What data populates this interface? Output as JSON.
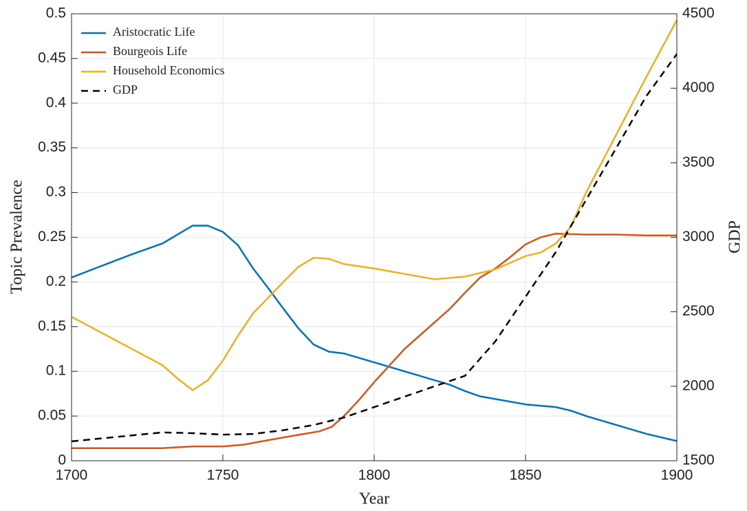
{
  "chart_data": {
    "type": "line",
    "xlabel": "Year",
    "ylabel": "Topic Prevalence",
    "y2label": "GDP",
    "xlim": [
      1700,
      1900
    ],
    "xticks": [
      1700,
      1750,
      1800,
      1850,
      1900
    ],
    "ylim": [
      0,
      0.5
    ],
    "yticks": [
      0,
      0.05,
      0.1,
      0.15,
      0.2,
      0.25,
      0.3,
      0.35,
      0.4,
      0.45,
      0.5
    ],
    "y2lim": [
      1500,
      4500
    ],
    "y2ticks": [
      1500,
      2000,
      2500,
      3000,
      3500,
      4000,
      4500
    ],
    "grid": true,
    "legend": "upper-left",
    "series": [
      {
        "name": "Aristocratic Life",
        "color": "#0072bd",
        "x": [
          1700,
          1710,
          1720,
          1730,
          1735,
          1740,
          1745,
          1750,
          1755,
          1760,
          1765,
          1770,
          1775,
          1780,
          1785,
          1790,
          1800,
          1810,
          1820,
          1825,
          1830,
          1835,
          1840,
          1850,
          1860,
          1865,
          1870,
          1880,
          1890,
          1900
        ],
        "values": [
          0.205,
          0.218,
          0.231,
          0.243,
          0.253,
          0.263,
          0.263,
          0.256,
          0.241,
          0.215,
          0.193,
          0.17,
          0.148,
          0.13,
          0.122,
          0.12,
          0.11,
          0.1,
          0.09,
          0.085,
          0.078,
          0.072,
          0.069,
          0.063,
          0.06,
          0.056,
          0.05,
          0.04,
          0.03,
          0.022
        ]
      },
      {
        "name": "Bourgeois Life",
        "color": "#d95319",
        "x": [
          1700,
          1730,
          1740,
          1750,
          1757,
          1765,
          1775,
          1782,
          1786,
          1790,
          1795,
          1800,
          1810,
          1820,
          1825,
          1830,
          1835,
          1840,
          1845,
          1850,
          1855,
          1860,
          1870,
          1880,
          1890,
          1900
        ],
        "values": [
          0.014,
          0.014,
          0.016,
          0.016,
          0.018,
          0.023,
          0.029,
          0.033,
          0.038,
          0.05,
          0.068,
          0.088,
          0.125,
          0.155,
          0.17,
          0.188,
          0.205,
          0.215,
          0.228,
          0.242,
          0.25,
          0.254,
          0.253,
          0.253,
          0.252,
          0.252
        ]
      },
      {
        "name": "Household Economics",
        "color": "#edb120",
        "x": [
          1700,
          1710,
          1720,
          1730,
          1735,
          1740,
          1745,
          1750,
          1755,
          1760,
          1770,
          1775,
          1780,
          1785,
          1790,
          1800,
          1810,
          1820,
          1830,
          1840,
          1850,
          1855,
          1860,
          1865,
          1870,
          1880,
          1890,
          1900
        ],
        "values": [
          0.161,
          0.143,
          0.125,
          0.107,
          0.092,
          0.079,
          0.09,
          0.112,
          0.14,
          0.165,
          0.2,
          0.217,
          0.227,
          0.226,
          0.22,
          0.215,
          0.209,
          0.203,
          0.206,
          0.214,
          0.229,
          0.233,
          0.243,
          0.262,
          0.3,
          0.365,
          0.43,
          0.493
        ]
      },
      {
        "name": "GDP",
        "color": "#000000",
        "style": "dashed",
        "axis": "y2",
        "x": [
          1700,
          1710,
          1720,
          1730,
          1740,
          1750,
          1760,
          1770,
          1780,
          1790,
          1800,
          1810,
          1820,
          1830,
          1840,
          1850,
          1860,
          1870,
          1880,
          1890,
          1900
        ],
        "values": [
          1630,
          1650,
          1670,
          1690,
          1685,
          1675,
          1680,
          1705,
          1740,
          1790,
          1860,
          1930,
          2000,
          2070,
          2300,
          2600,
          2900,
          3250,
          3600,
          3950,
          4230
        ]
      }
    ]
  }
}
